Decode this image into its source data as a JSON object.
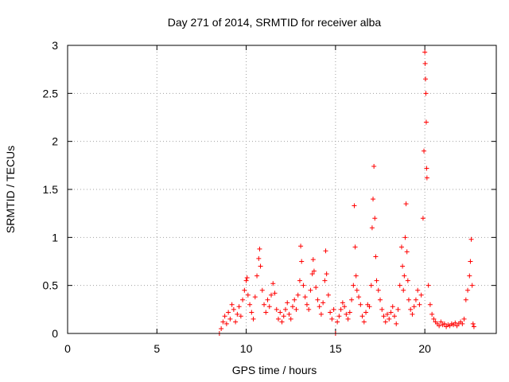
{
  "chart_data": {
    "type": "scatter",
    "title": "Day 271 of 2014, SRMTID for receiver alba",
    "xlabel": "GPS time / hours",
    "ylabel": "SRMTID / TECUs",
    "xlim": [
      0,
      24
    ],
    "ylim": [
      0,
      3
    ],
    "x_ticks": [
      0,
      5,
      10,
      15,
      20
    ],
    "x_tick_labels": [
      "0",
      "5",
      "10",
      "15",
      "20"
    ],
    "y_ticks": [
      0,
      0.5,
      1,
      1.5,
      2,
      2.5,
      3
    ],
    "y_tick_labels": [
      "0",
      "0.5",
      "1",
      "1.5",
      "2",
      "2.5",
      "3"
    ],
    "grid": true,
    "marker": "+",
    "series": [
      {
        "name": "SRMTID",
        "color": "#ff0000",
        "points": [
          [
            8.5,
            0.0
          ],
          [
            8.6,
            0.05
          ],
          [
            8.7,
            0.12
          ],
          [
            8.8,
            0.18
          ],
          [
            8.9,
            0.1
          ],
          [
            9.0,
            0.22
          ],
          [
            9.1,
            0.15
          ],
          [
            9.2,
            0.3
          ],
          [
            9.3,
            0.25
          ],
          [
            9.4,
            0.12
          ],
          [
            9.5,
            0.2
          ],
          [
            9.6,
            0.28
          ],
          [
            9.7,
            0.18
          ],
          [
            9.8,
            0.35
          ],
          [
            9.9,
            0.45
          ],
          [
            10.0,
            0.55
          ],
          [
            10.05,
            0.58
          ],
          [
            10.1,
            0.4
          ],
          [
            10.2,
            0.3
          ],
          [
            10.3,
            0.22
          ],
          [
            10.4,
            0.15
          ],
          [
            10.5,
            0.38
          ],
          [
            10.6,
            0.6
          ],
          [
            10.7,
            0.78
          ],
          [
            10.75,
            0.88
          ],
          [
            10.8,
            0.7
          ],
          [
            10.9,
            0.45
          ],
          [
            11.0,
            0.3
          ],
          [
            11.1,
            0.22
          ],
          [
            11.2,
            0.35
          ],
          [
            11.3,
            0.28
          ],
          [
            11.4,
            0.4
          ],
          [
            11.5,
            0.52
          ],
          [
            11.6,
            0.42
          ],
          [
            11.7,
            0.25
          ],
          [
            11.8,
            0.15
          ],
          [
            11.9,
            0.22
          ],
          [
            12.0,
            0.12
          ],
          [
            12.1,
            0.18
          ],
          [
            12.2,
            0.25
          ],
          [
            12.3,
            0.32
          ],
          [
            12.4,
            0.2
          ],
          [
            12.5,
            0.15
          ],
          [
            12.6,
            0.28
          ],
          [
            12.7,
            0.35
          ],
          [
            12.8,
            0.25
          ],
          [
            12.9,
            0.4
          ],
          [
            13.0,
            0.55
          ],
          [
            13.05,
            0.91
          ],
          [
            13.1,
            0.75
          ],
          [
            13.2,
            0.5
          ],
          [
            13.3,
            0.38
          ],
          [
            13.4,
            0.3
          ],
          [
            13.5,
            0.25
          ],
          [
            13.6,
            0.45
          ],
          [
            13.7,
            0.62
          ],
          [
            13.75,
            0.77
          ],
          [
            13.8,
            0.65
          ],
          [
            13.9,
            0.48
          ],
          [
            14.0,
            0.35
          ],
          [
            14.1,
            0.28
          ],
          [
            14.2,
            0.2
          ],
          [
            14.3,
            0.32
          ],
          [
            14.4,
            0.55
          ],
          [
            14.45,
            0.86
          ],
          [
            14.5,
            0.62
          ],
          [
            14.6,
            0.4
          ],
          [
            14.7,
            0.22
          ],
          [
            14.8,
            0.15
          ],
          [
            14.9,
            0.25
          ],
          [
            15.0,
            0.0
          ],
          [
            15.1,
            0.12
          ],
          [
            15.2,
            0.18
          ],
          [
            15.3,
            0.25
          ],
          [
            15.4,
            0.32
          ],
          [
            15.5,
            0.28
          ],
          [
            15.6,
            0.2
          ],
          [
            15.7,
            0.15
          ],
          [
            15.8,
            0.22
          ],
          [
            15.9,
            0.35
          ],
          [
            16.0,
            0.5
          ],
          [
            16.05,
            1.33
          ],
          [
            16.1,
            0.9
          ],
          [
            16.15,
            0.6
          ],
          [
            16.2,
            0.45
          ],
          [
            16.3,
            0.38
          ],
          [
            16.4,
            0.3
          ],
          [
            16.5,
            0.18
          ],
          [
            16.6,
            0.12
          ],
          [
            16.7,
            0.22
          ],
          [
            16.8,
            0.3
          ],
          [
            16.9,
            0.28
          ],
          [
            17.0,
            0.5
          ],
          [
            17.05,
            1.1
          ],
          [
            17.1,
            1.4
          ],
          [
            17.15,
            1.74
          ],
          [
            17.2,
            1.2
          ],
          [
            17.25,
            0.8
          ],
          [
            17.3,
            0.55
          ],
          [
            17.4,
            0.45
          ],
          [
            17.5,
            0.35
          ],
          [
            17.6,
            0.25
          ],
          [
            17.7,
            0.18
          ],
          [
            17.8,
            0.12
          ],
          [
            17.9,
            0.2
          ],
          [
            18.0,
            0.15
          ],
          [
            18.1,
            0.22
          ],
          [
            18.2,
            0.28
          ],
          [
            18.3,
            0.18
          ],
          [
            18.4,
            0.1
          ],
          [
            18.5,
            0.25
          ],
          [
            18.6,
            0.5
          ],
          [
            18.7,
            0.9
          ],
          [
            18.75,
            0.7
          ],
          [
            18.8,
            0.45
          ],
          [
            18.85,
            0.6
          ],
          [
            18.9,
            1.0
          ],
          [
            18.95,
            1.35
          ],
          [
            19.0,
            0.85
          ],
          [
            19.05,
            0.55
          ],
          [
            19.1,
            0.35
          ],
          [
            19.2,
            0.25
          ],
          [
            19.3,
            0.2
          ],
          [
            19.4,
            0.28
          ],
          [
            19.5,
            0.35
          ],
          [
            19.6,
            0.45
          ],
          [
            19.7,
            0.3
          ],
          [
            19.8,
            0.4
          ],
          [
            19.9,
            1.2
          ],
          [
            19.95,
            1.9
          ],
          [
            20.0,
            2.93
          ],
          [
            20.02,
            2.81
          ],
          [
            20.04,
            2.65
          ],
          [
            20.06,
            2.5
          ],
          [
            20.08,
            2.2
          ],
          [
            20.1,
            1.72
          ],
          [
            20.12,
            1.62
          ],
          [
            20.2,
            0.5
          ],
          [
            20.3,
            0.3
          ],
          [
            20.4,
            0.2
          ],
          [
            20.5,
            0.15
          ],
          [
            20.6,
            0.12
          ],
          [
            20.7,
            0.1
          ],
          [
            20.8,
            0.08
          ],
          [
            20.9,
            0.12
          ],
          [
            21.0,
            0.09
          ],
          [
            21.1,
            0.1
          ],
          [
            21.2,
            0.07
          ],
          [
            21.3,
            0.09
          ],
          [
            21.4,
            0.08
          ],
          [
            21.5,
            0.1
          ],
          [
            21.6,
            0.09
          ],
          [
            21.7,
            0.11
          ],
          [
            21.8,
            0.08
          ],
          [
            21.9,
            0.1
          ],
          [
            22.0,
            0.12
          ],
          [
            22.1,
            0.1
          ],
          [
            22.2,
            0.15
          ],
          [
            22.3,
            0.35
          ],
          [
            22.4,
            0.45
          ],
          [
            22.5,
            0.6
          ],
          [
            22.55,
            0.75
          ],
          [
            22.6,
            0.98
          ],
          [
            22.65,
            0.5
          ],
          [
            22.7,
            0.1
          ],
          [
            22.75,
            0.07
          ]
        ]
      }
    ]
  }
}
